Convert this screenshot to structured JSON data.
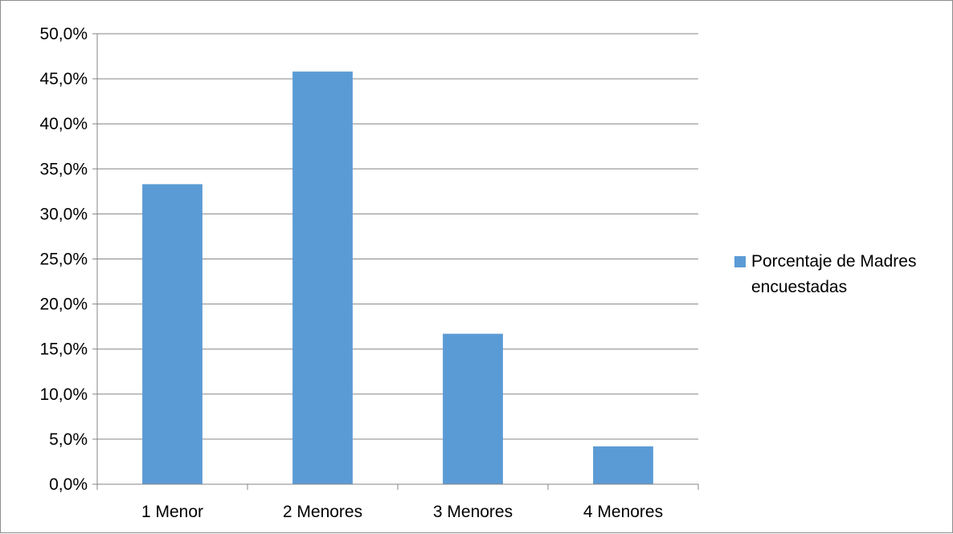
{
  "chart_data": {
    "type": "bar",
    "categories": [
      "1 Menor",
      "2 Menores",
      "3 Menores",
      "4 Menores"
    ],
    "series": [
      {
        "name": "Porcentaje de Madres encuestadas",
        "values": [
          33.3,
          45.8,
          16.7,
          4.2
        ],
        "color": "#5b9bd5"
      }
    ],
    "title": "",
    "xlabel": "",
    "ylabel": "",
    "ylim": [
      0,
      50
    ],
    "yticks": [
      0,
      5,
      10,
      15,
      20,
      25,
      30,
      35,
      40,
      45,
      50
    ],
    "ytick_labels": [
      "0,0%",
      "5,0%",
      "10,0%",
      "15,0%",
      "20,0%",
      "25,0%",
      "30,0%",
      "35,0%",
      "40,0%",
      "45,0%",
      "50,0%"
    ],
    "grid": true,
    "gridline_color": "#868686",
    "legend": {
      "position": "right",
      "lines": [
        "Porcentaje de Madres",
        "encuestadas"
      ]
    }
  }
}
